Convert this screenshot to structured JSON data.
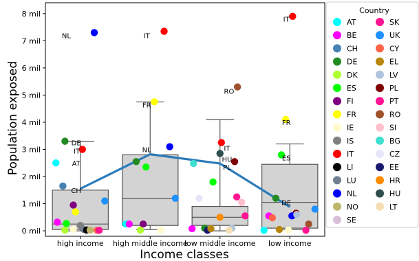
{
  "chart_data": {
    "type": "scatter",
    "xlabel": "Income classes",
    "ylabel": "Population exposed",
    "categories": [
      "high income",
      "high middle income",
      "low middle income",
      "low income"
    ],
    "yticks": [
      {
        "v": 0,
        "label": "0 mil"
      },
      {
        "v": 1,
        "label": "1 mil"
      },
      {
        "v": 2,
        "label": "2 mil"
      },
      {
        "v": 3,
        "label": "3 mil"
      },
      {
        "v": 4,
        "label": "4 mil"
      },
      {
        "v": 5,
        "label": "5 mil"
      },
      {
        "v": 6,
        "label": "6 mil"
      },
      {
        "v": 7,
        "label": "7 mil"
      },
      {
        "v": 8,
        "label": "8 mil"
      }
    ],
    "ylim": [
      -0.2,
      8.4
    ],
    "boxes": [
      {
        "category": "high income",
        "whisker_low": 0,
        "q1": 0.05,
        "median": 0.25,
        "q3": 1.5,
        "whisker_high": 3.3
      },
      {
        "category": "high middle income",
        "whisker_low": 0.05,
        "q1": 0.2,
        "median": 1.2,
        "q3": 2.8,
        "whisker_high": 4.75
      },
      {
        "category": "low middle income",
        "whisker_low": 0,
        "q1": 0.2,
        "median": 0.5,
        "q3": 0.9,
        "whisker_high": 4.1
      },
      {
        "category": "low income",
        "whisker_low": 0.05,
        "q1": 0.1,
        "median": 1.05,
        "q3": 2.45,
        "whisker_high": 3.2
      }
    ],
    "mean_line": {
      "color": "#2b7bba",
      "values": [
        1.55,
        2.82,
        2.48,
        0.88
      ]
    },
    "legend": {
      "title": "Country",
      "entries": [
        {
          "code": "AT",
          "color": "#00ffff"
        },
        {
          "code": "SK",
          "color": "#ff1493"
        },
        {
          "code": "BE",
          "color": "#ff00ff"
        },
        {
          "code": "UK",
          "color": "#1e90ff"
        },
        {
          "code": "CH",
          "color": "#4682b4"
        },
        {
          "code": "CY",
          "color": "#ff6347"
        },
        {
          "code": "DE",
          "color": "#228b22"
        },
        {
          "code": "EL",
          "color": "#b8860b"
        },
        {
          "code": "DK",
          "color": "#adff2f"
        },
        {
          "code": "LV",
          "color": "#b0c4de"
        },
        {
          "code": "ES",
          "color": "#00ff00"
        },
        {
          "code": "PL",
          "color": "#800000"
        },
        {
          "code": "FI",
          "color": "#800080"
        },
        {
          "code": "PT",
          "color": "#ff1493"
        },
        {
          "code": "FR",
          "color": "#ffff00"
        },
        {
          "code": "RO",
          "color": "#a0522d"
        },
        {
          "code": "IE",
          "color": "#fffacd"
        },
        {
          "code": "SI",
          "color": "#ffc0cb"
        },
        {
          "code": "IS",
          "color": "#808080"
        },
        {
          "code": "BG",
          "color": "#40e0d0"
        },
        {
          "code": "IT",
          "color": "#ff0000"
        },
        {
          "code": "CZ",
          "color": "#e6e6fa"
        },
        {
          "code": "LI",
          "color": "#000000"
        },
        {
          "code": "EE",
          "color": "#191970"
        },
        {
          "code": "LU",
          "color": "#708090"
        },
        {
          "code": "HR",
          "color": "#ff8c00"
        },
        {
          "code": "NL",
          "color": "#0000ff"
        },
        {
          "code": "HU",
          "color": "#2f4f4f"
        },
        {
          "code": "NO",
          "color": "#bdb76b"
        },
        {
          "code": "LT",
          "color": "#f5deb3"
        },
        {
          "code": "SE",
          "color": "#d8bfd8"
        }
      ]
    },
    "annotations": [
      {
        "text": "NL",
        "cat": 0,
        "dx": -0.2,
        "y": 7.2
      },
      {
        "text": "DE",
        "cat": 0,
        "dx": -0.06,
        "y": 3.25
      },
      {
        "text": "IT",
        "cat": 0,
        "dx": -0.05,
        "y": 2.95
      },
      {
        "text": "AT",
        "cat": 0,
        "dx": -0.06,
        "y": 2.5
      },
      {
        "text": "CH",
        "cat": 0,
        "dx": -0.06,
        "y": 1.5
      },
      {
        "text": "IT",
        "cat": 1,
        "dx": -0.05,
        "y": 7.2
      },
      {
        "text": "FR",
        "cat": 1,
        "dx": -0.05,
        "y": 4.65
      },
      {
        "text": "NL",
        "cat": 1,
        "dx": -0.05,
        "y": 3.0
      },
      {
        "text": "RO",
        "cat": 2,
        "dx": 0.13,
        "y": 5.15
      },
      {
        "text": "IT",
        "cat": 2,
        "dx": 0.1,
        "y": 3.05
      },
      {
        "text": "HU",
        "cat": 2,
        "dx": 0.1,
        "y": 2.65
      },
      {
        "text": "PL",
        "cat": 2,
        "dx": 0.1,
        "y": 2.35
      },
      {
        "text": "IT",
        "cat": 3,
        "dx": -0.05,
        "y": 7.8
      },
      {
        "text": "FR",
        "cat": 3,
        "dx": -0.05,
        "y": 4.0
      },
      {
        "text": "ES",
        "cat": 3,
        "dx": -0.05,
        "y": 2.7
      },
      {
        "text": "DE",
        "cat": 3,
        "dx": -0.05,
        "y": 1.05
      }
    ],
    "points": [
      {
        "cat": 0,
        "dx": 0.2,
        "y": 7.3,
        "country": "NL"
      },
      {
        "cat": 0,
        "dx": -0.22,
        "y": 3.3,
        "country": "DE"
      },
      {
        "cat": 0,
        "dx": 0.03,
        "y": 3.0,
        "country": "IT"
      },
      {
        "cat": 0,
        "dx": -0.35,
        "y": 2.5,
        "country": "AT"
      },
      {
        "cat": 0,
        "dx": -0.25,
        "y": 1.65,
        "country": "CH"
      },
      {
        "cat": 0,
        "dx": 0.35,
        "y": 1.1,
        "country": "UK"
      },
      {
        "cat": 0,
        "dx": -0.1,
        "y": 0.95,
        "country": "FI"
      },
      {
        "cat": 0,
        "dx": -0.07,
        "y": 0.7,
        "country": "FR"
      },
      {
        "cat": 0,
        "dx": -0.33,
        "y": 0.32,
        "country": "BE"
      },
      {
        "cat": 0,
        "dx": -0.2,
        "y": 0.27,
        "country": "ES"
      },
      {
        "cat": 0,
        "dx": 0.0,
        "y": 0.2,
        "country": "IS"
      },
      {
        "cat": 0,
        "dx": -0.22,
        "y": 0.03,
        "country": "DK"
      },
      {
        "cat": 0,
        "dx": -0.1,
        "y": 0.06,
        "country": "IE"
      },
      {
        "cat": 0,
        "dx": 0.05,
        "y": 0.05,
        "country": "LU"
      },
      {
        "cat": 0,
        "dx": 0.09,
        "y": 0.03,
        "country": "LI"
      },
      {
        "cat": 0,
        "dx": 0.14,
        "y": 0.03,
        "country": "NO"
      },
      {
        "cat": 0,
        "dx": 0.24,
        "y": 0.02,
        "country": "CY"
      },
      {
        "cat": 0,
        "dx": 0.27,
        "y": 0.02,
        "country": "PT"
      },
      {
        "cat": 1,
        "dx": 0.2,
        "y": 7.35,
        "country": "IT"
      },
      {
        "cat": 1,
        "dx": 0.06,
        "y": 4.75,
        "country": "FR"
      },
      {
        "cat": 1,
        "dx": 0.28,
        "y": 3.1,
        "country": "NL"
      },
      {
        "cat": 1,
        "dx": -0.2,
        "y": 2.55,
        "country": "DE"
      },
      {
        "cat": 1,
        "dx": -0.06,
        "y": 2.35,
        "country": "ES"
      },
      {
        "cat": 1,
        "dx": 0.36,
        "y": 1.2,
        "country": "UK"
      },
      {
        "cat": 1,
        "dx": -0.35,
        "y": 0.25,
        "country": "AT"
      },
      {
        "cat": 1,
        "dx": -0.3,
        "y": 0.25,
        "country": "BE"
      },
      {
        "cat": 1,
        "dx": -0.1,
        "y": 0.25,
        "country": "FI"
      },
      {
        "cat": 1,
        "dx": -0.14,
        "y": 0.03,
        "country": "DK"
      },
      {
        "cat": 1,
        "dx": 0.15,
        "y": 0.03,
        "country": "IE"
      },
      {
        "cat": 2,
        "dx": 0.25,
        "y": 5.3,
        "country": "RO"
      },
      {
        "cat": 2,
        "dx": 0.02,
        "y": 3.25,
        "country": "IT"
      },
      {
        "cat": 2,
        "dx": 0.0,
        "y": 2.85,
        "country": "HU"
      },
      {
        "cat": 2,
        "dx": 0.21,
        "y": 2.55,
        "country": "PL"
      },
      {
        "cat": 2,
        "dx": -0.38,
        "y": 2.48,
        "country": "BG"
      },
      {
        "cat": 2,
        "dx": -0.1,
        "y": 1.8,
        "country": "ES"
      },
      {
        "cat": 2,
        "dx": -0.3,
        "y": 1.2,
        "country": "CZ"
      },
      {
        "cat": 2,
        "dx": 0.24,
        "y": 1.25,
        "country": "SK"
      },
      {
        "cat": 2,
        "dx": 0.31,
        "y": 1.05,
        "country": "SI"
      },
      {
        "cat": 2,
        "dx": 0.36,
        "y": 0.55,
        "country": "PT"
      },
      {
        "cat": 2,
        "dx": 0.0,
        "y": 0.5,
        "country": "HR"
      },
      {
        "cat": 2,
        "dx": -0.4,
        "y": 0.08,
        "country": "BE"
      },
      {
        "cat": 2,
        "dx": -0.22,
        "y": 0.1,
        "country": "DE"
      },
      {
        "cat": 2,
        "dx": -0.18,
        "y": 0.02,
        "country": "EE"
      },
      {
        "cat": 2,
        "dx": -0.13,
        "y": 0.08,
        "country": "EL"
      },
      {
        "cat": 2,
        "dx": 0.17,
        "y": 0.1,
        "country": "LV"
      },
      {
        "cat": 2,
        "dx": 0.13,
        "y": 0.03,
        "country": "LT"
      },
      {
        "cat": 3,
        "dx": 0.04,
        "y": 7.9,
        "country": "IT"
      },
      {
        "cat": 3,
        "dx": -0.06,
        "y": 4.1,
        "country": "FR"
      },
      {
        "cat": 3,
        "dx": -0.12,
        "y": 2.8,
        "country": "ES"
      },
      {
        "cat": 3,
        "dx": -0.2,
        "y": 1.2,
        "country": "DE"
      },
      {
        "cat": 3,
        "dx": 0.09,
        "y": 0.65,
        "country": "PL"
      },
      {
        "cat": 3,
        "dx": 0.03,
        "y": 0.55,
        "country": "NL"
      },
      {
        "cat": 3,
        "dx": 0.1,
        "y": 0.6,
        "country": "LV"
      },
      {
        "cat": 3,
        "dx": 0.36,
        "y": 0.8,
        "country": "UK"
      },
      {
        "cat": 3,
        "dx": -0.3,
        "y": 0.55,
        "country": "BE"
      },
      {
        "cat": 3,
        "dx": -0.25,
        "y": 0.48,
        "country": "CY"
      },
      {
        "cat": 3,
        "dx": 0.27,
        "y": 0.25,
        "country": "RO"
      },
      {
        "cat": 3,
        "dx": -0.37,
        "y": 0.02,
        "country": "AT"
      },
      {
        "cat": 3,
        "dx": -0.15,
        "y": 0.05,
        "country": "EL"
      },
      {
        "cat": 3,
        "dx": -0.02,
        "y": 0.03,
        "country": "IE"
      },
      {
        "cat": 3,
        "dx": 0.23,
        "y": 0.02,
        "country": "PT"
      }
    ]
  }
}
